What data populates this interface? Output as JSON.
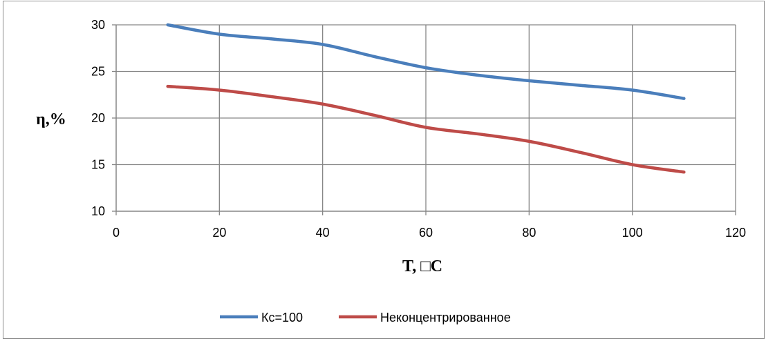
{
  "chart_data": {
    "type": "line",
    "title": "",
    "xlabel": "T, □C",
    "ylabel": "η,%",
    "xlim": [
      0,
      120
    ],
    "ylim": [
      10,
      30
    ],
    "xticks": [
      0,
      20,
      40,
      60,
      80,
      100,
      120
    ],
    "yticks": [
      10,
      15,
      20,
      25,
      30
    ],
    "grid": true,
    "legend_position": "bottom",
    "series": [
      {
        "name": "Кс=100",
        "color": "#4a7ebb",
        "x": [
          10,
          20,
          30,
          40,
          50,
          60,
          70,
          80,
          90,
          100,
          110
        ],
        "y": [
          30,
          29,
          28.5,
          27.9,
          26.6,
          25.4,
          24.6,
          24,
          23.5,
          23,
          22.1
        ]
      },
      {
        "name": "Неконцентрированное",
        "color": "#be4b48",
        "x": [
          10,
          20,
          30,
          40,
          50,
          60,
          70,
          80,
          90,
          100,
          110
        ],
        "y": [
          23.4,
          23,
          22.3,
          21.5,
          20.3,
          19,
          18.3,
          17.5,
          16.3,
          15,
          14.2
        ]
      }
    ]
  }
}
